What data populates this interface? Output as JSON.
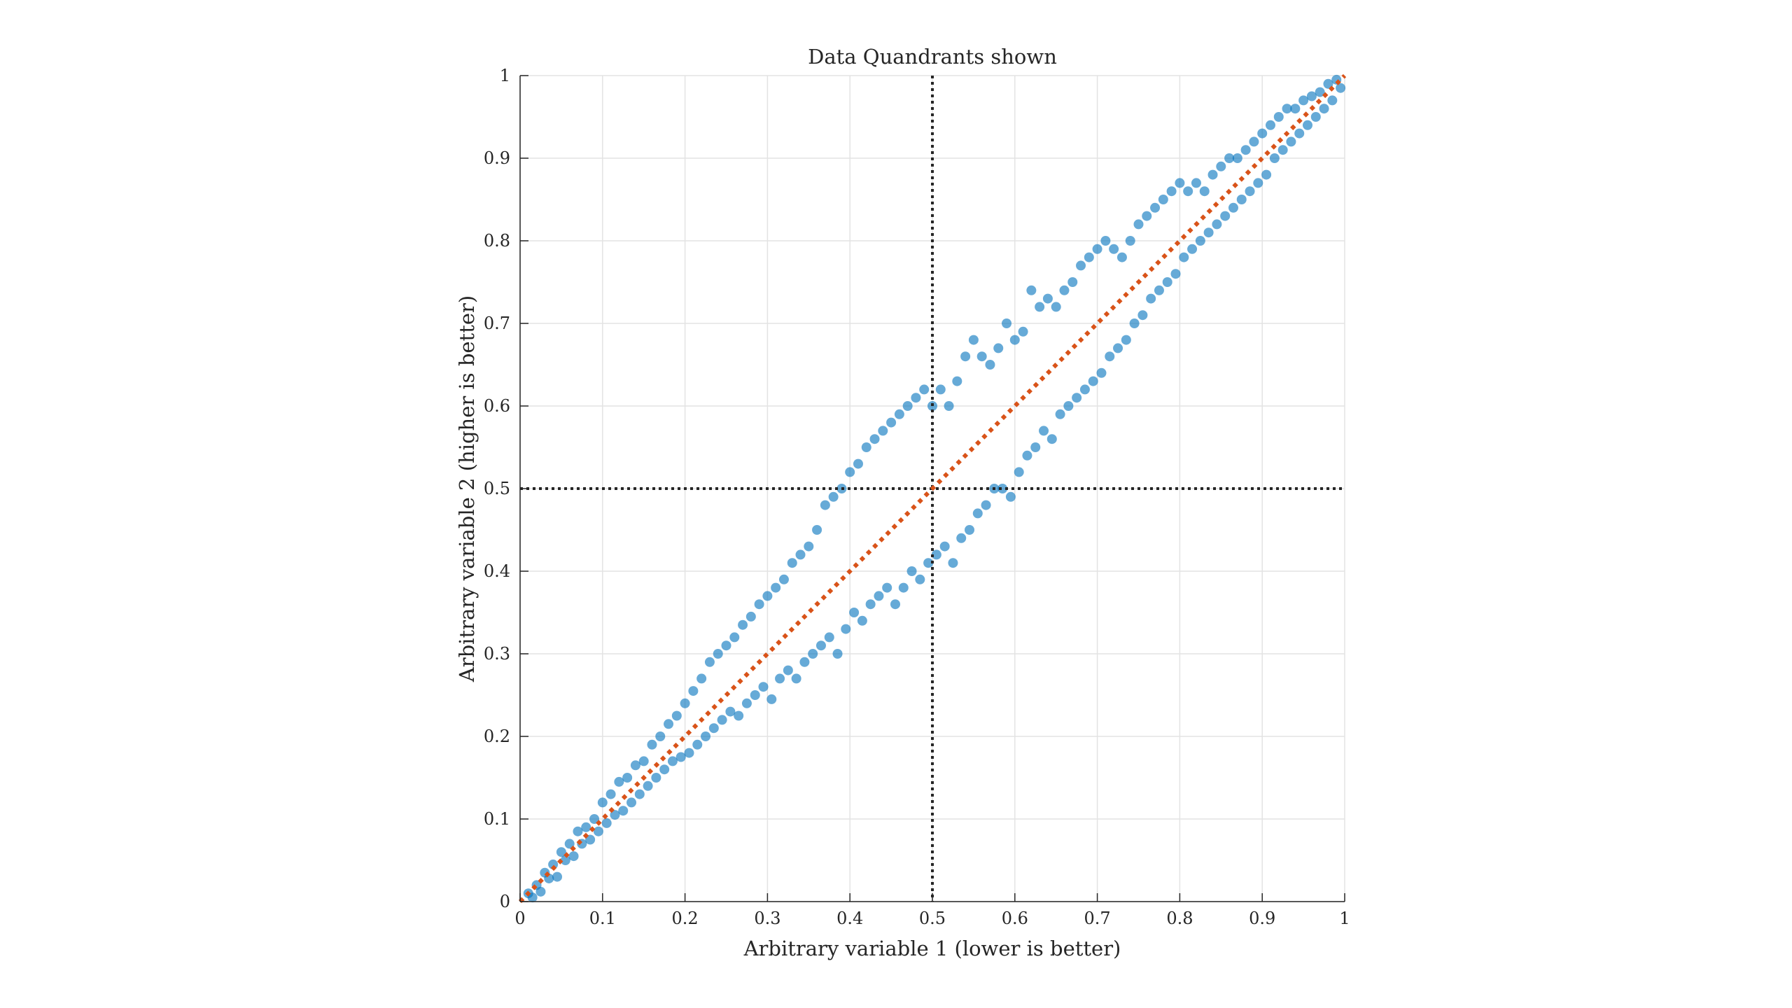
{
  "chart_data": {
    "type": "scatter",
    "title": "Data Quandrants shown",
    "xlabel": "Arbitrary variable 1 (lower is better)",
    "ylabel": "Arbitrary variable 2 (higher is better)",
    "xlim": [
      0,
      1
    ],
    "ylim": [
      0,
      1
    ],
    "xticks": [
      "0",
      "0.1",
      "0.2",
      "0.3",
      "0.4",
      "0.5",
      "0.6",
      "0.7",
      "0.8",
      "0.9",
      "1"
    ],
    "yticks": [
      "0",
      "0.1",
      "0.2",
      "0.3",
      "0.4",
      "0.5",
      "0.6",
      "0.7",
      "0.8",
      "0.9",
      "1"
    ],
    "grid": true,
    "reference_lines": [
      {
        "orientation": "vertical",
        "value": 0.5,
        "style": "dotted",
        "color": "#262626"
      },
      {
        "orientation": "horizontal",
        "value": 0.5,
        "style": "dotted",
        "color": "#262626"
      }
    ],
    "trend_line": {
      "x": [
        0,
        1
      ],
      "y": [
        0,
        1
      ],
      "style": "dotted",
      "color": "#D95319"
    },
    "series": [
      {
        "color": "#0072BD",
        "points": [
          [
            0.01,
            0.01
          ],
          [
            0.015,
            0.005
          ],
          [
            0.02,
            0.02
          ],
          [
            0.025,
            0.012
          ],
          [
            0.03,
            0.035
          ],
          [
            0.035,
            0.028
          ],
          [
            0.04,
            0.045
          ],
          [
            0.045,
            0.03
          ],
          [
            0.05,
            0.06
          ],
          [
            0.055,
            0.05
          ],
          [
            0.06,
            0.07
          ],
          [
            0.065,
            0.055
          ],
          [
            0.07,
            0.085
          ],
          [
            0.075,
            0.07
          ],
          [
            0.08,
            0.09
          ],
          [
            0.085,
            0.075
          ],
          [
            0.09,
            0.1
          ],
          [
            0.095,
            0.085
          ],
          [
            0.1,
            0.12
          ],
          [
            0.105,
            0.095
          ],
          [
            0.11,
            0.13
          ],
          [
            0.115,
            0.105
          ],
          [
            0.12,
            0.145
          ],
          [
            0.125,
            0.11
          ],
          [
            0.13,
            0.15
          ],
          [
            0.135,
            0.12
          ],
          [
            0.14,
            0.165
          ],
          [
            0.145,
            0.13
          ],
          [
            0.15,
            0.17
          ],
          [
            0.155,
            0.14
          ],
          [
            0.16,
            0.19
          ],
          [
            0.165,
            0.15
          ],
          [
            0.17,
            0.2
          ],
          [
            0.175,
            0.16
          ],
          [
            0.18,
            0.215
          ],
          [
            0.185,
            0.17
          ],
          [
            0.19,
            0.225
          ],
          [
            0.195,
            0.175
          ],
          [
            0.2,
            0.24
          ],
          [
            0.205,
            0.18
          ],
          [
            0.21,
            0.255
          ],
          [
            0.215,
            0.19
          ],
          [
            0.22,
            0.27
          ],
          [
            0.225,
            0.2
          ],
          [
            0.23,
            0.29
          ],
          [
            0.235,
            0.21
          ],
          [
            0.24,
            0.3
          ],
          [
            0.245,
            0.22
          ],
          [
            0.25,
            0.31
          ],
          [
            0.255,
            0.23
          ],
          [
            0.26,
            0.32
          ],
          [
            0.265,
            0.225
          ],
          [
            0.27,
            0.335
          ],
          [
            0.275,
            0.24
          ],
          [
            0.28,
            0.345
          ],
          [
            0.285,
            0.25
          ],
          [
            0.29,
            0.36
          ],
          [
            0.295,
            0.26
          ],
          [
            0.3,
            0.37
          ],
          [
            0.305,
            0.245
          ],
          [
            0.31,
            0.38
          ],
          [
            0.315,
            0.27
          ],
          [
            0.32,
            0.39
          ],
          [
            0.325,
            0.28
          ],
          [
            0.33,
            0.41
          ],
          [
            0.335,
            0.27
          ],
          [
            0.34,
            0.42
          ],
          [
            0.345,
            0.29
          ],
          [
            0.35,
            0.43
          ],
          [
            0.355,
            0.3
          ],
          [
            0.36,
            0.45
          ],
          [
            0.365,
            0.31
          ],
          [
            0.37,
            0.48
          ],
          [
            0.375,
            0.32
          ],
          [
            0.38,
            0.49
          ],
          [
            0.385,
            0.3
          ],
          [
            0.39,
            0.5
          ],
          [
            0.395,
            0.33
          ],
          [
            0.4,
            0.52
          ],
          [
            0.405,
            0.35
          ],
          [
            0.41,
            0.53
          ],
          [
            0.415,
            0.34
          ],
          [
            0.42,
            0.55
          ],
          [
            0.425,
            0.36
          ],
          [
            0.43,
            0.56
          ],
          [
            0.435,
            0.37
          ],
          [
            0.44,
            0.57
          ],
          [
            0.445,
            0.38
          ],
          [
            0.45,
            0.58
          ],
          [
            0.455,
            0.36
          ],
          [
            0.46,
            0.59
          ],
          [
            0.465,
            0.38
          ],
          [
            0.47,
            0.6
          ],
          [
            0.475,
            0.4
          ],
          [
            0.48,
            0.61
          ],
          [
            0.485,
            0.39
          ],
          [
            0.49,
            0.62
          ],
          [
            0.495,
            0.41
          ],
          [
            0.5,
            0.6
          ],
          [
            0.505,
            0.42
          ],
          [
            0.51,
            0.62
          ],
          [
            0.515,
            0.43
          ],
          [
            0.52,
            0.6
          ],
          [
            0.525,
            0.41
          ],
          [
            0.53,
            0.63
          ],
          [
            0.535,
            0.44
          ],
          [
            0.54,
            0.66
          ],
          [
            0.545,
            0.45
          ],
          [
            0.55,
            0.68
          ],
          [
            0.555,
            0.47
          ],
          [
            0.56,
            0.66
          ],
          [
            0.565,
            0.48
          ],
          [
            0.57,
            0.65
          ],
          [
            0.575,
            0.5
          ],
          [
            0.58,
            0.67
          ],
          [
            0.585,
            0.5
          ],
          [
            0.59,
            0.7
          ],
          [
            0.595,
            0.49
          ],
          [
            0.6,
            0.68
          ],
          [
            0.605,
            0.52
          ],
          [
            0.61,
            0.69
          ],
          [
            0.615,
            0.54
          ],
          [
            0.62,
            0.74
          ],
          [
            0.625,
            0.55
          ],
          [
            0.63,
            0.72
          ],
          [
            0.635,
            0.57
          ],
          [
            0.64,
            0.73
          ],
          [
            0.645,
            0.56
          ],
          [
            0.65,
            0.72
          ],
          [
            0.655,
            0.59
          ],
          [
            0.66,
            0.74
          ],
          [
            0.665,
            0.6
          ],
          [
            0.67,
            0.75
          ],
          [
            0.675,
            0.61
          ],
          [
            0.68,
            0.77
          ],
          [
            0.685,
            0.62
          ],
          [
            0.69,
            0.78
          ],
          [
            0.695,
            0.63
          ],
          [
            0.7,
            0.79
          ],
          [
            0.705,
            0.64
          ],
          [
            0.71,
            0.8
          ],
          [
            0.715,
            0.66
          ],
          [
            0.72,
            0.79
          ],
          [
            0.725,
            0.67
          ],
          [
            0.73,
            0.78
          ],
          [
            0.735,
            0.68
          ],
          [
            0.74,
            0.8
          ],
          [
            0.745,
            0.7
          ],
          [
            0.75,
            0.82
          ],
          [
            0.755,
            0.71
          ],
          [
            0.76,
            0.83
          ],
          [
            0.765,
            0.73
          ],
          [
            0.77,
            0.84
          ],
          [
            0.775,
            0.74
          ],
          [
            0.78,
            0.85
          ],
          [
            0.785,
            0.75
          ],
          [
            0.79,
            0.86
          ],
          [
            0.795,
            0.76
          ],
          [
            0.8,
            0.87
          ],
          [
            0.805,
            0.78
          ],
          [
            0.81,
            0.86
          ],
          [
            0.815,
            0.79
          ],
          [
            0.82,
            0.87
          ],
          [
            0.825,
            0.8
          ],
          [
            0.83,
            0.86
          ],
          [
            0.835,
            0.81
          ],
          [
            0.84,
            0.88
          ],
          [
            0.845,
            0.82
          ],
          [
            0.85,
            0.89
          ],
          [
            0.855,
            0.83
          ],
          [
            0.86,
            0.9
          ],
          [
            0.865,
            0.84
          ],
          [
            0.87,
            0.9
          ],
          [
            0.875,
            0.85
          ],
          [
            0.88,
            0.91
          ],
          [
            0.885,
            0.86
          ],
          [
            0.89,
            0.92
          ],
          [
            0.895,
            0.87
          ],
          [
            0.9,
            0.93
          ],
          [
            0.905,
            0.88
          ],
          [
            0.91,
            0.94
          ],
          [
            0.915,
            0.9
          ],
          [
            0.92,
            0.95
          ],
          [
            0.925,
            0.91
          ],
          [
            0.93,
            0.96
          ],
          [
            0.935,
            0.92
          ],
          [
            0.94,
            0.96
          ],
          [
            0.945,
            0.93
          ],
          [
            0.95,
            0.97
          ],
          [
            0.955,
            0.94
          ],
          [
            0.96,
            0.975
          ],
          [
            0.965,
            0.95
          ],
          [
            0.97,
            0.98
          ],
          [
            0.975,
            0.96
          ],
          [
            0.98,
            0.99
          ],
          [
            0.985,
            0.97
          ],
          [
            0.99,
            0.995
          ],
          [
            0.995,
            0.985
          ]
        ]
      }
    ]
  }
}
